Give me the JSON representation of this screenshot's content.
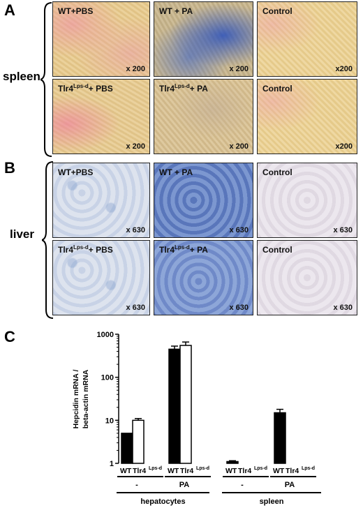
{
  "panel_a": {
    "letter": "A",
    "side_label": "spleen",
    "tiles": [
      {
        "label_main": "WT+PBS",
        "label_sup": "",
        "label_tail": "",
        "mag": "x 200"
      },
      {
        "label_main": "WT + PA",
        "label_sup": "",
        "label_tail": "",
        "mag": "x 200"
      },
      {
        "label_main": "Control",
        "label_sup": "",
        "label_tail": "",
        "mag": "x200"
      },
      {
        "label_main": "Tlr4",
        "label_sup": "Lps-d",
        "label_tail": "+ PBS",
        "mag": "x 200"
      },
      {
        "label_main": "Tlr4",
        "label_sup": "Lps-d",
        "label_tail": "+ PA",
        "mag": "x 200"
      },
      {
        "label_main": "Control",
        "label_sup": "",
        "label_tail": "",
        "mag": "x200"
      }
    ]
  },
  "panel_b": {
    "letter": "B",
    "side_label": "liver",
    "tiles": [
      {
        "label_main": "WT+PBS",
        "label_sup": "",
        "label_tail": "",
        "mag": "x 630"
      },
      {
        "label_main": "WT + PA",
        "label_sup": "",
        "label_tail": "",
        "mag": "x 630"
      },
      {
        "label_main": "Control",
        "label_sup": "",
        "label_tail": "",
        "mag": "x 630"
      },
      {
        "label_main": "Tlr4",
        "label_sup": "Lps-d",
        "label_tail": "+ PBS",
        "mag": "x 630"
      },
      {
        "label_main": "Tlr4",
        "label_sup": "Lps-d",
        "label_tail": "+ PA",
        "mag": "x 630"
      },
      {
        "label_main": "Control",
        "label_sup": "",
        "label_tail": "",
        "mag": "x 630"
      }
    ]
  },
  "panel_c": {
    "letter": "C",
    "colors": {
      "filled": "#000000",
      "open": "#ffffff"
    }
  },
  "chart_data": {
    "type": "bar",
    "ylabel": "Hepcidin mRNA / beta-actin mRNA",
    "yscale": "log",
    "ylim": [
      1,
      1000
    ],
    "yticks": [
      "1",
      "10",
      "100",
      "1000"
    ],
    "groups": [
      {
        "treatment": "-",
        "tissue": "hepatocytes",
        "WT": 5,
        "Tlr4Lps-d": 10,
        "WT_err": 0,
        "Tlr4Lps-d_err": 1
      },
      {
        "treatment": "PA",
        "tissue": "hepatocytes",
        "WT": 450,
        "Tlr4Lps-d": 550,
        "WT_err": 80,
        "Tlr4Lps-d_err": 110
      },
      {
        "treatment": "-",
        "tissue": "spleen",
        "WT": 1.1,
        "Tlr4Lps-d": 1,
        "WT_err": 0.05,
        "Tlr4Lps-d_err": 0
      },
      {
        "treatment": "PA",
        "tissue": "spleen",
        "WT": 15,
        "Tlr4Lps-d": 1,
        "WT_err": 3,
        "Tlr4Lps-d_err": 0
      }
    ],
    "bar_labels": {
      "wt": "WT",
      "tlr_main": "Tlr4",
      "tlr_sup": "Lps-d"
    },
    "tissues": [
      "hepatocytes",
      "spleen"
    ]
  }
}
